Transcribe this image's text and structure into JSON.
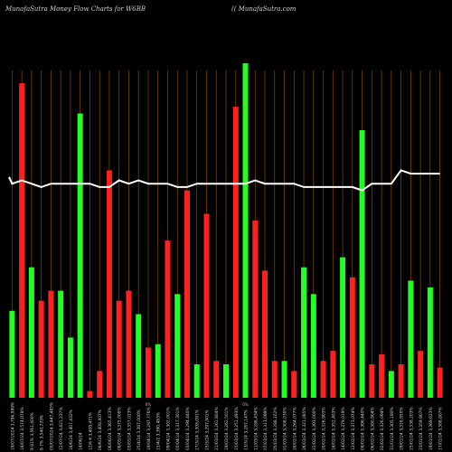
{
  "header": {
    "left": "MunafaSutra  Money Flow  Charts for W6BB",
    "right": "(( MunafaSutra.com"
  },
  "colors": {
    "background": "#000000",
    "up": "#22ff22",
    "down": "#ff2020",
    "line": "#ffffff",
    "grid": "#8a4a00"
  },
  "chart_data": {
    "type": "bar",
    "title": "MunafaSutra  Money Flow  Charts for W6BB",
    "ylim": [
      0,
      100
    ],
    "grid": "vertical",
    "categories": [
      "19/07/2024 3,796,989%",
      "18/07/24 3,574,078%",
      "9 81% 3,561,400%",
      "8 7% 3,540,733%",
      "05/07/2024 3,447,485%",
      "12/07/24 3,421,237%",
      "18/6/24 3,407,432%",
      "14/06/24",
      "12/6 6 3,408,471%",
      "08/6/24 3,408,407%",
      "06/06/24 3,365,413%",
      "08/05/24 3,375,008%",
      "03/05/24 3,357,023%",
      "25/4/24 3,387,000%",
      "19/04/24 3,287,776%",
      "15/4/2 3,390,483%",
      "09/04/24 3,302,001%",
      "05/04/24 3,317,301%",
      "03/04/24 3,294,440%",
      "27/3/24 3,308,091%",
      "25/3/24 3,297,801%",
      "21/03/24 3,261,804%",
      "19/03/24 3,262,501%",
      "15/03/24 3,251,493%",
      "13/3/24 3,287,147%",
      "11/03/24 3,288,434%",
      "07/03/24 3,313,099%",
      "05/03/24 3,288,102%",
      "01/03/24 3,308,030%",
      "28/02/24 3,264,077%",
      "26/02/24 3,321,085%",
      "22/02/24 3,303,000%",
      "20/02/24 3,326,903%",
      "16/02/24 3,352,403%",
      "14/02/24 3,379,019%",
      "12/02/24 3,373,074%",
      "08/02/24 3,396,440%",
      "06/02/24 3,380,904%",
      "02/02/24 3,326,094%",
      "31/01/24 3,305,190%",
      "29/01/24 3,316,950%",
      "25/01/24 3,338,203%",
      "23/01/24 3,359,907%",
      "19/01/24 3,369,023%",
      "17/01/24 3,388,807%"
    ],
    "bar_colors": [
      "g",
      "r",
      "g",
      "r",
      "r",
      "g",
      "g",
      "g",
      "r",
      "r",
      "r",
      "r",
      "r",
      "g",
      "r",
      "g",
      "r",
      "g",
      "r",
      "g",
      "r",
      "r",
      "g",
      "r",
      "g",
      "r",
      "r",
      "r",
      "g",
      "r",
      "g",
      "g",
      "r",
      "r",
      "g",
      "r",
      "g",
      "r",
      "r",
      "g",
      "r",
      "g",
      "r",
      "g",
      "r"
    ],
    "values": [
      26,
      94,
      39,
      29,
      32,
      32,
      18,
      85,
      2,
      8,
      68,
      29,
      32,
      25,
      15,
      16,
      47,
      31,
      62,
      10,
      55,
      11,
      10,
      87,
      100,
      53,
      38,
      11,
      11,
      8,
      39,
      31,
      11,
      14,
      42,
      36,
      80,
      10,
      13,
      8,
      10,
      35,
      14,
      33,
      9
    ],
    "line": [
      64,
      65,
      64,
      63,
      64,
      64,
      64,
      64,
      64,
      63,
      63,
      65,
      64,
      65,
      64,
      64,
      64,
      63,
      63,
      64,
      64,
      64,
      64,
      64,
      64,
      65,
      64,
      64,
      64,
      64,
      63,
      63,
      63,
      63,
      63,
      63,
      62,
      64,
      64,
      64,
      68,
      67,
      67,
      67,
      67
    ],
    "line_start": 66,
    "marks": [
      {
        "index": 14,
        "text": "0%"
      },
      {
        "index": 24,
        "text": "0%"
      }
    ]
  }
}
